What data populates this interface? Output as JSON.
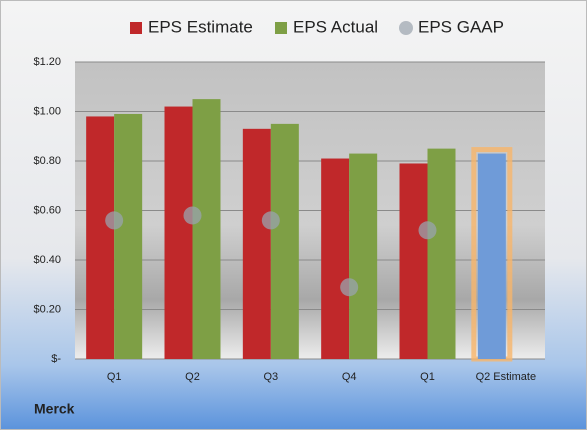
{
  "chart_data": {
    "type": "bar",
    "title": "Merck",
    "categories": [
      "Q1",
      "Q2",
      "Q3",
      "Q4",
      "Q1",
      "Q2 Estimate"
    ],
    "series": [
      {
        "name": "EPS Estimate",
        "color": "#c0282a",
        "values": [
          0.98,
          1.02,
          0.93,
          0.81,
          0.79,
          0.83
        ],
        "colors": [
          "#c0282a",
          "#c0282a",
          "#c0282a",
          "#c0282a",
          "#c0282a",
          "#6f9bd8"
        ],
        "highlight": [
          false,
          false,
          false,
          false,
          false,
          true
        ],
        "highlight_color": "#f7b56a"
      },
      {
        "name": "EPS Actual",
        "color": "#7e9f45",
        "values": [
          0.99,
          1.05,
          0.95,
          0.83,
          0.85,
          null
        ]
      },
      {
        "name": "EPS GAAP",
        "color": "#9aa3ad",
        "marker": "circle",
        "values": [
          0.56,
          0.58,
          0.56,
          0.29,
          0.52,
          null
        ]
      }
    ],
    "ylim": [
      0,
      1.2
    ],
    "yticks": [
      {
        "value": 0,
        "label": "$-"
      },
      {
        "value": 0.2,
        "label": "$0.20"
      },
      {
        "value": 0.4,
        "label": "$0.40"
      },
      {
        "value": 0.6,
        "label": "$0.60"
      },
      {
        "value": 0.8,
        "label": "$0.80"
      },
      {
        "value": 1.0,
        "label": "$1.00"
      },
      {
        "value": 1.2,
        "label": "$1.20"
      }
    ],
    "grid": true,
    "legend": "top"
  }
}
